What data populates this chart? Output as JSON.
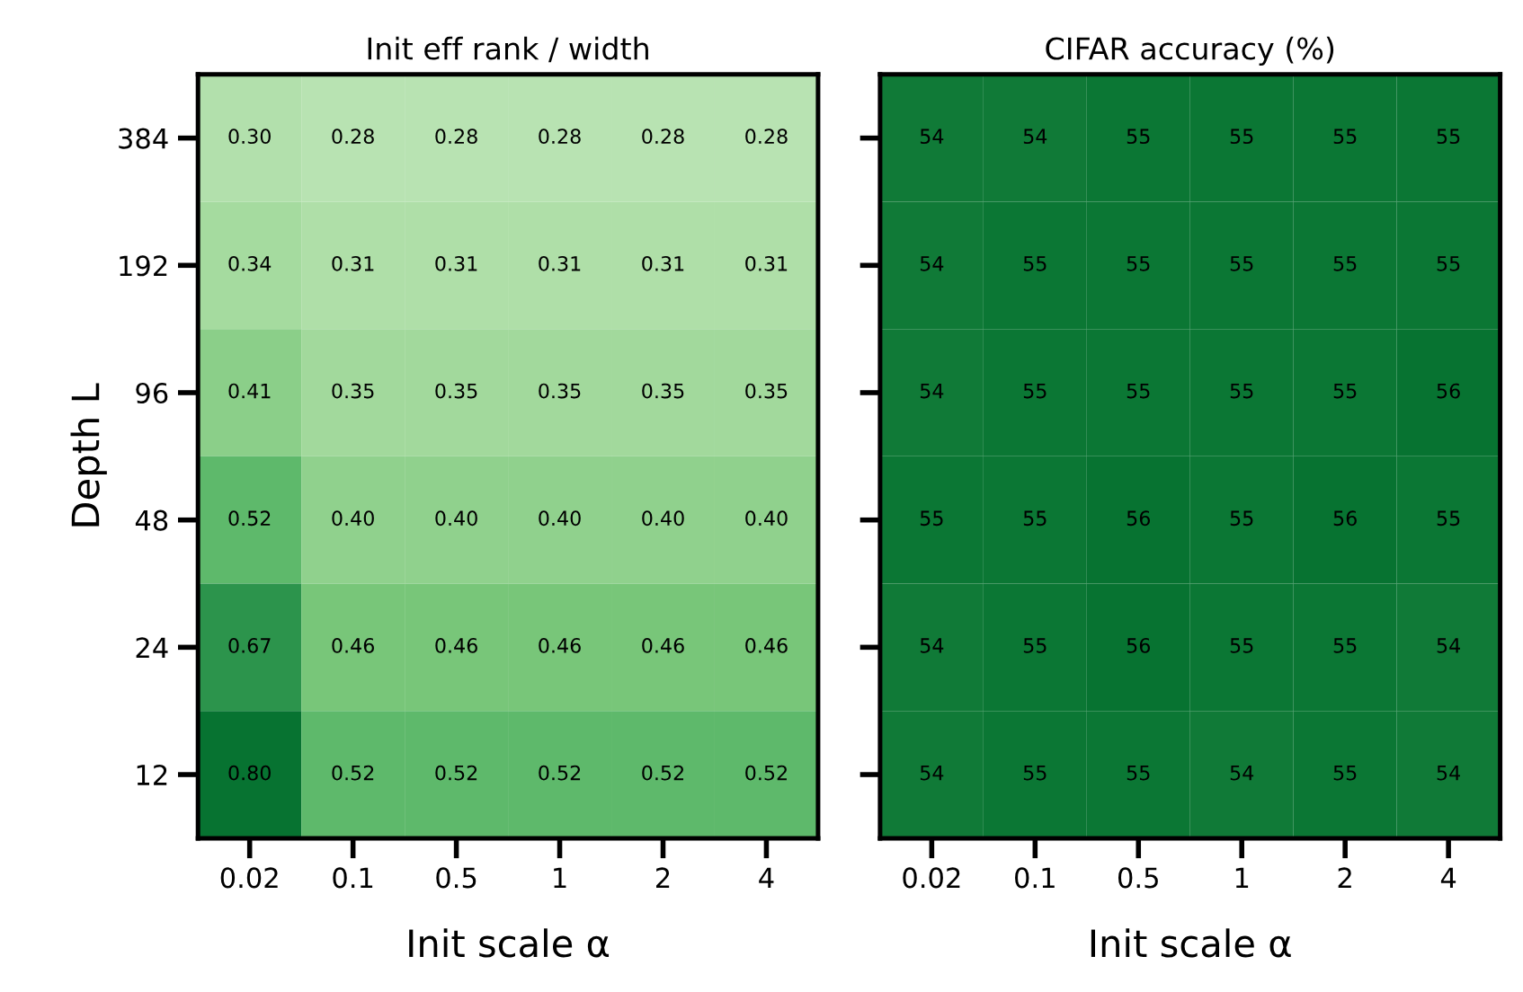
{
  "chart_data": [
    {
      "type": "heatmap",
      "title": "Init eff rank / width",
      "xlabel": "Init scale α",
      "ylabel": "Depth L",
      "categories": [
        "0.02",
        "0.1",
        "0.5",
        "1",
        "2",
        "4"
      ],
      "y_categories": [
        "384",
        "192",
        "96",
        "48",
        "24",
        "12"
      ],
      "cells": [
        [
          0.3,
          0.28,
          0.28,
          0.28,
          0.28,
          0.28
        ],
        [
          0.34,
          0.31,
          0.31,
          0.31,
          0.31,
          0.31
        ],
        [
          0.41,
          0.35,
          0.35,
          0.35,
          0.35,
          0.35
        ],
        [
          0.52,
          0.4,
          0.4,
          0.4,
          0.4,
          0.4
        ],
        [
          0.67,
          0.46,
          0.46,
          0.46,
          0.46,
          0.46
        ],
        [
          0.8,
          0.52,
          0.52,
          0.52,
          0.52,
          0.52
        ]
      ],
      "cell_labels": [
        [
          "0.30",
          "0.28",
          "0.28",
          "0.28",
          "0.28",
          "0.28"
        ],
        [
          "0.34",
          "0.31",
          "0.31",
          "0.31",
          "0.31",
          "0.31"
        ],
        [
          "0.41",
          "0.35",
          "0.35",
          "0.35",
          "0.35",
          "0.35"
        ],
        [
          "0.52",
          "0.40",
          "0.40",
          "0.40",
          "0.40",
          "0.40"
        ],
        [
          "0.67",
          "0.46",
          "0.46",
          "0.46",
          "0.46",
          "0.46"
        ],
        [
          "0.80",
          "0.52",
          "0.52",
          "0.52",
          "0.52",
          "0.52"
        ]
      ]
    },
    {
      "type": "heatmap",
      "title": "CIFAR accuracy (%)",
      "xlabel": "Init scale α",
      "tick_labels": "x",
      "data_labels": true,
      "categories": [
        "0.02",
        "0.1",
        "0.5",
        "1",
        "2",
        "4"
      ],
      "y_categories": [
        "384",
        "192",
        "96",
        "48",
        "24",
        "12"
      ],
      "cells": [
        [
          54,
          54,
          55,
          55,
          55,
          55
        ],
        [
          54,
          55,
          55,
          55,
          55,
          55
        ],
        [
          54,
          55,
          55,
          55,
          55,
          56
        ],
        [
          55,
          55,
          56,
          55,
          56,
          55
        ],
        [
          54,
          55,
          56,
          55,
          55,
          54
        ],
        [
          54,
          55,
          55,
          54,
          55,
          54
        ]
      ]
    }
  ]
}
